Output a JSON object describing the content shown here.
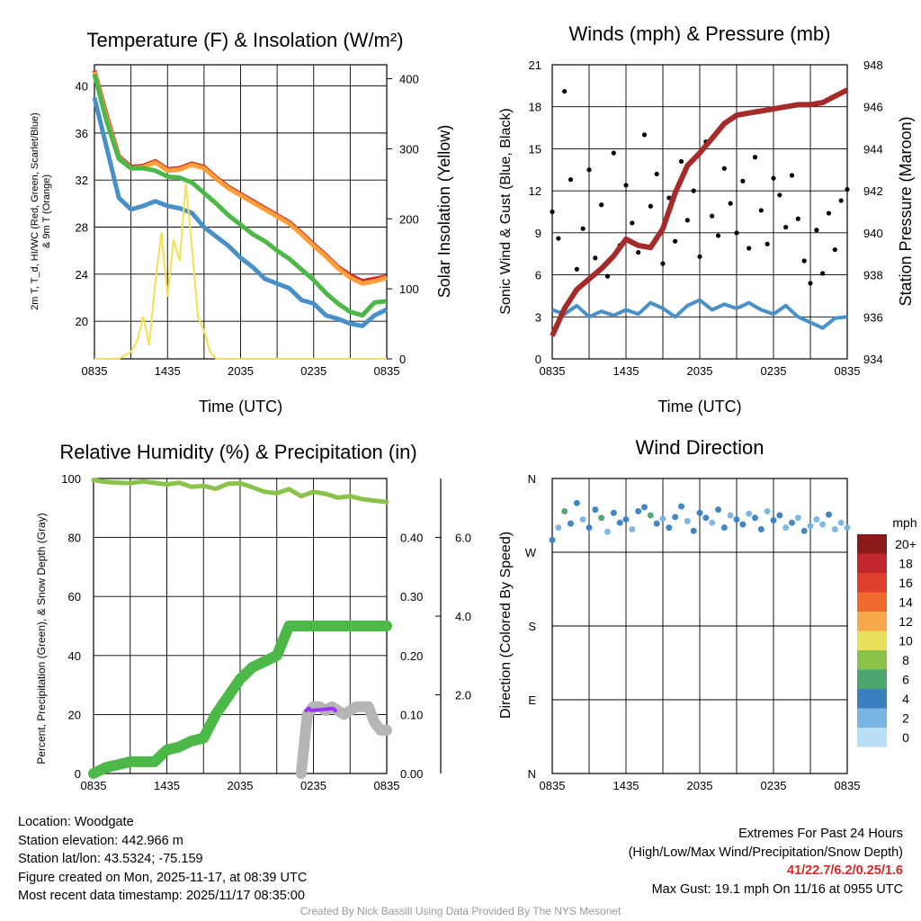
{
  "chart_data": [
    {
      "type": "line",
      "title": "Temperature (F) & Insolation (W/m²)",
      "xlabel": "Time (UTC)",
      "ylabel": "2m T, T_d, HI/WC (Red, Green, Scarlet/Blue) & 9m T (Orange)",
      "ylabel_lines": [
        "2m T, T_d, HI/WC (Red, Green, Scarlet/Blue)",
        "& 9m T (Orange)"
      ],
      "y2label": "Solar Insolation (Yellow)",
      "x_ticks": [
        "0835",
        "1435",
        "2035",
        "0235",
        "0835"
      ],
      "ylim": [
        16.8,
        41.8
      ],
      "y_ticks": [
        20,
        24,
        28,
        32,
        36,
        40
      ],
      "y2lim": [
        0,
        420
      ],
      "y2_ticks": [
        0,
        100,
        200,
        300,
        400
      ],
      "series": [
        {
          "name": "2m Temperature",
          "color": "#d62728",
          "x": [
            0,
            1,
            2,
            3,
            4,
            5,
            6,
            7,
            8,
            9,
            10,
            11,
            12,
            13,
            14,
            15,
            16,
            17,
            18,
            19,
            20,
            21,
            22,
            23,
            24
          ],
          "values": [
            41.3,
            37.5,
            34.0,
            33.1,
            33.2,
            33.6,
            32.9,
            33.0,
            33.4,
            33.1,
            32.2,
            31.4,
            30.8,
            30.2,
            29.6,
            29.0,
            28.4,
            27.5,
            26.5,
            25.6,
            24.6,
            23.9,
            23.4,
            23.6,
            23.8
          ]
        },
        {
          "name": "9m Temperature",
          "color": "#ff9f3a",
          "x": [
            0,
            1,
            2,
            3,
            4,
            5,
            6,
            7,
            8,
            9,
            10,
            11,
            12,
            13,
            14,
            15,
            16,
            17,
            18,
            19,
            20,
            21,
            22,
            23,
            24
          ],
          "values": [
            41.2,
            37.3,
            33.9,
            33.0,
            33.1,
            33.5,
            32.8,
            32.9,
            33.3,
            33.0,
            32.1,
            31.3,
            30.7,
            30.1,
            29.5,
            28.9,
            28.3,
            27.4,
            26.4,
            25.5,
            24.5,
            23.7,
            23.2,
            23.4,
            23.7
          ]
        },
        {
          "name": "Dewpoint",
          "color": "#4cb847",
          "x": [
            0,
            1,
            2,
            3,
            4,
            5,
            6,
            7,
            8,
            9,
            10,
            11,
            12,
            13,
            14,
            15,
            16,
            17,
            18,
            19,
            20,
            21,
            22,
            23,
            24
          ],
          "values": [
            41.0,
            37.0,
            33.8,
            33.0,
            33.0,
            32.8,
            32.3,
            32.2,
            31.8,
            30.9,
            30.0,
            29.0,
            28.2,
            27.4,
            26.8,
            26.0,
            25.3,
            24.4,
            23.5,
            22.4,
            21.5,
            20.8,
            20.5,
            21.6,
            21.7
          ]
        },
        {
          "name": "Wind Chill",
          "color": "#4a90c8",
          "x": [
            0,
            1,
            2,
            3,
            4,
            5,
            6,
            7,
            8,
            9,
            10,
            11,
            12,
            13,
            14,
            15,
            16,
            17,
            18,
            19,
            20,
            21,
            22,
            23,
            24
          ],
          "values": [
            39.0,
            34.8,
            30.5,
            29.5,
            29.8,
            30.2,
            29.8,
            29.6,
            29.2,
            28.0,
            27.2,
            26.4,
            25.4,
            24.6,
            23.6,
            23.2,
            22.8,
            21.8,
            21.5,
            20.5,
            20.2,
            19.8,
            19.6,
            20.5,
            21.0
          ]
        },
        {
          "name": "Solar Insolation",
          "color": "#f5e050",
          "axis": "y2",
          "x": [
            0,
            2,
            3,
            3.5,
            4,
            4.5,
            5,
            5.5,
            6,
            6.5,
            7,
            7.5,
            8,
            8.5,
            9,
            9.5,
            10,
            11,
            12,
            13,
            24
          ],
          "values": [
            0,
            0,
            10,
            25,
            60,
            20,
            110,
            180,
            90,
            170,
            140,
            250,
            160,
            60,
            40,
            10,
            0,
            0,
            0,
            0,
            0
          ]
        }
      ]
    },
    {
      "type": "scatter",
      "title": "Winds (mph) & Pressure (mb)",
      "xlabel": "Time (UTC)",
      "ylabel": "Sonic Wind & Gust (Blue, Black)",
      "y2label": "Station Pressure (Maroon)",
      "x_ticks": [
        "0835",
        "1435",
        "2035",
        "0235",
        "0835"
      ],
      "ylim": [
        0,
        21
      ],
      "y_ticks": [
        0,
        3,
        6,
        9,
        12,
        15,
        18,
        21
      ],
      "y2lim": [
        934,
        948
      ],
      "y2_ticks": [
        934,
        936,
        938,
        940,
        942,
        944,
        946,
        948
      ],
      "series": [
        {
          "name": "Sonic Wind",
          "color": "#4a90c8",
          "x": [
            0,
            1,
            2,
            3,
            4,
            5,
            6,
            7,
            8,
            9,
            10,
            11,
            12,
            13,
            14,
            15,
            16,
            17,
            18,
            19,
            20,
            21,
            22,
            23,
            24
          ],
          "values": [
            3.5,
            3.2,
            3.8,
            3.0,
            3.4,
            3.1,
            3.5,
            3.2,
            4.0,
            3.6,
            3.0,
            3.8,
            4.2,
            3.5,
            3.9,
            3.6,
            4.0,
            3.5,
            3.2,
            3.8,
            3.0,
            2.6,
            2.2,
            2.9,
            3.0
          ]
        },
        {
          "name": "Gust",
          "color": "#000000",
          "x": [
            0,
            0.5,
            1,
            1.5,
            2,
            2.5,
            3,
            3.5,
            4,
            4.5,
            5,
            5.5,
            6,
            6.5,
            7,
            7.5,
            8,
            8.5,
            9,
            9.5,
            10,
            10.5,
            11,
            11.5,
            12,
            12.5,
            13,
            13.5,
            14,
            14.5,
            15,
            15.5,
            16,
            16.5,
            17,
            17.5,
            18,
            18.5,
            19,
            19.5,
            20,
            20.5,
            21,
            21.5,
            22,
            22.5,
            23,
            23.5,
            24
          ],
          "values": [
            10.5,
            8.6,
            19.1,
            12.8,
            6.4,
            9.3,
            13.5,
            7.2,
            11.0,
            5.9,
            14.7,
            8.1,
            12.4,
            9.7,
            7.6,
            16.0,
            10.9,
            13.2,
            6.8,
            11.5,
            8.4,
            14.1,
            9.9,
            12.0,
            7.3,
            15.5,
            10.2,
            8.8,
            13.6,
            11.1,
            9.0,
            12.7,
            7.9,
            14.4,
            10.6,
            8.2,
            12.9,
            11.7,
            9.4,
            13.1,
            10.0,
            7.0,
            5.4,
            9.2,
            6.1,
            10.4,
            7.8,
            11.3,
            12.1
          ]
        },
        {
          "name": "Station Pressure",
          "color": "#a52a2a",
          "axis": "y2",
          "x": [
            0,
            1,
            2,
            3,
            4,
            5,
            6,
            7,
            8,
            9,
            10,
            11,
            12,
            13,
            14,
            15,
            16,
            17,
            18,
            19,
            20,
            21,
            22,
            23,
            24
          ],
          "values": [
            935.1,
            936.4,
            937.3,
            937.8,
            938.3,
            938.9,
            939.7,
            939.4,
            939.3,
            940.2,
            941.9,
            943.2,
            943.8,
            944.5,
            945.2,
            945.6,
            945.7,
            945.8,
            945.9,
            946.0,
            946.1,
            946.1,
            946.2,
            946.5,
            946.8
          ]
        }
      ]
    },
    {
      "type": "scatter",
      "title": "Relative Humidity (%) & Precipitation (in)",
      "xlabel": "",
      "ylabel": "Percent, Precipitation (Green), & Snow Depth (Gray)",
      "x_ticks": [
        "0835",
        "1435",
        "2035",
        "0235",
        "0835"
      ],
      "ylim": [
        0,
        100
      ],
      "y_ticks": [
        0,
        20,
        40,
        60,
        80,
        100
      ],
      "y2lim": [
        0,
        0.5
      ],
      "y2_ticks": [
        "0.00",
        "0.10",
        "0.20",
        "0.30",
        "0.40"
      ],
      "y3lim": [
        0,
        7.5
      ],
      "y3_ticks": [
        "2.0",
        "4.0",
        "6.0"
      ],
      "series": [
        {
          "name": "Relative Humidity",
          "color": "#8bc34a",
          "x": [
            0,
            1,
            2,
            3,
            4,
            5,
            6,
            7,
            8,
            9,
            10,
            11,
            12,
            13,
            14,
            15,
            16,
            17,
            18,
            19,
            20,
            21,
            22,
            23,
            24
          ],
          "values": [
            99.5,
            98.8,
            98.6,
            98.4,
            99.0,
            98.5,
            98.0,
            98.6,
            97.2,
            97.5,
            96.5,
            98.2,
            98.4,
            97.0,
            95.5,
            95.0,
            96.4,
            94.0,
            95.5,
            94.8,
            93.5,
            94.0,
            93.0,
            92.5,
            92.0
          ]
        },
        {
          "name": "Precipitation",
          "color": "#4cb847",
          "axis": "y2",
          "x": [
            0,
            1,
            2,
            3,
            4,
            5,
            6,
            7,
            8,
            9,
            10,
            11,
            12,
            13,
            14,
            15,
            16,
            17,
            18,
            19,
            20,
            21,
            22,
            23,
            24
          ],
          "values": [
            0,
            0.01,
            0.015,
            0.02,
            0.02,
            0.02,
            0.04,
            0.045,
            0.055,
            0.06,
            0.1,
            0.13,
            0.16,
            0.18,
            0.19,
            0.2,
            0.25,
            0.25,
            0.25,
            0.25,
            0.25,
            0.25,
            0.25,
            0.25,
            0.25
          ]
        },
        {
          "name": "Snow Depth",
          "color": "#b5b5b5",
          "axis": "y3",
          "x": [
            17,
            17.2,
            17.5,
            18,
            18.5,
            19,
            19.5,
            20,
            20.5,
            21,
            21.5,
            22,
            22.5,
            23,
            23.5,
            24
          ],
          "values": [
            0,
            0.6,
            1.5,
            1.7,
            1.7,
            1.6,
            1.7,
            1.6,
            1.5,
            1.6,
            1.7,
            1.7,
            1.7,
            1.3,
            1.1,
            1.1
          ]
        },
        {
          "name": "Snow (purple)",
          "color": "#9b30ff",
          "axis": "y3",
          "x": [
            17.4,
            17.6,
            17.8,
            19.6,
            19.8
          ],
          "values": [
            1.6,
            1.65,
            1.6,
            1.65,
            1.6
          ]
        }
      ]
    },
    {
      "type": "scatter",
      "title": "Wind Direction",
      "xlabel": "",
      "ylabel": "Direction (Colored By Speed)",
      "x_ticks": [
        "0835",
        "1435",
        "2035",
        "0235",
        "0835"
      ],
      "y_ticks": [
        "N",
        "E",
        "S",
        "W",
        "N"
      ],
      "ylim": [
        0,
        360
      ],
      "legend_title": "mph",
      "legend_labels": [
        "20+",
        "18",
        "16",
        "14",
        "12",
        "10",
        "8",
        "6",
        "4",
        "2",
        "0"
      ],
      "legend_colors": [
        "#8b1a1a",
        "#c0272d",
        "#e03e2d",
        "#f06a30",
        "#f7a84a",
        "#e8e05a",
        "#8bc34a",
        "#4aa56e",
        "#3a7fc0",
        "#79b4e2",
        "#b8dff5"
      ],
      "series": [
        {
          "name": "Wind Direction",
          "x": [
            0,
            0.5,
            1,
            1.5,
            2,
            2.5,
            3,
            3.5,
            4,
            4.5,
            5,
            5.5,
            6,
            6.5,
            7,
            7.5,
            8,
            8.5,
            9,
            9.5,
            10,
            10.5,
            11,
            11.5,
            12,
            12.5,
            13,
            13.5,
            14,
            14.5,
            15,
            15.5,
            16,
            16.5,
            17,
            17.5,
            18,
            18.5,
            19,
            19.5,
            20,
            20.5,
            21,
            21.5,
            22,
            22.5,
            23,
            23.5,
            24
          ],
          "values": [
            285,
            300,
            320,
            305,
            330,
            310,
            300,
            322,
            312,
            295,
            318,
            306,
            310,
            298,
            320,
            325,
            315,
            305,
            311,
            300,
            313,
            326,
            308,
            296,
            318,
            312,
            306,
            322,
            300,
            315,
            310,
            304,
            317,
            312,
            298,
            320,
            309,
            315,
            300,
            306,
            312,
            296,
            302,
            310,
            304,
            316,
            298,
            306,
            300
          ],
          "speeds": [
            3,
            2,
            6,
            4,
            3,
            2,
            4,
            3,
            5,
            2,
            3,
            4,
            3,
            2,
            4,
            3,
            6,
            3,
            2,
            4,
            3,
            4,
            2,
            3,
            4,
            3,
            2,
            4,
            3,
            2,
            4,
            3,
            2,
            4,
            3,
            2,
            3,
            4,
            2,
            3,
            2,
            3,
            2,
            1,
            2,
            3,
            2,
            2,
            1
          ]
        }
      ]
    }
  ],
  "info": {
    "location": "Location: Woodgate",
    "elevation": "Station elevation: 442.966 m",
    "latlon": "Station lat/lon: 43.5324; -75.159",
    "created": "Figure created on Mon, 2025-11-17, at 08:39 UTC",
    "recent": "Most recent data timestamp: 2025/11/17 08:35:00"
  },
  "extremes": {
    "title": "Extremes For Past 24 Hours",
    "subtitle": "(High/Low/Max Wind/Precipitation/Snow Depth)",
    "values": "41/22.7/6.2/0.25/1.6",
    "gust": "Max Gust: 19.1 mph On 11/16 at 0955 UTC"
  },
  "credit": "Created By Nick Bassill Using Data Provided By The NYS Mesonet"
}
